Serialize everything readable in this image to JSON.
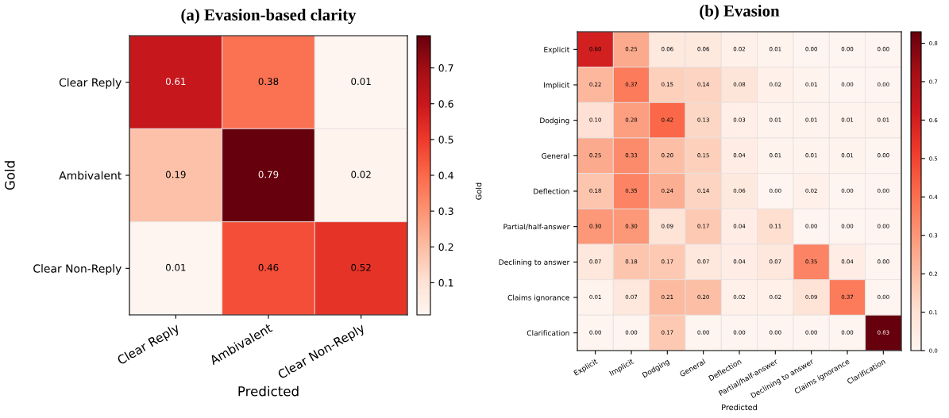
{
  "chart_data": [
    {
      "type": "heatmap",
      "title": "(a) Evasion-based clarity",
      "xlabel": "Predicted",
      "ylabel": "Gold",
      "categories": [
        "Clear Reply",
        "Ambivalent",
        "Clear Non-Reply"
      ],
      "y_categories": [
        "Clear Reply",
        "Ambivalent",
        "Clear Non-Reply"
      ],
      "cells": [
        [
          0.61,
          0.38,
          0.01
        ],
        [
          0.19,
          0.79,
          0.02
        ],
        [
          0.01,
          0.46,
          0.52
        ]
      ],
      "cell_labels": [
        [
          "0.61",
          "0.38",
          "0.01"
        ],
        [
          "0.19",
          "0.79",
          "0.02"
        ],
        [
          "0.01",
          "0.46",
          "0.52"
        ]
      ],
      "clim": [
        0.01,
        0.79
      ],
      "cticks": [
        0.1,
        0.2,
        0.3,
        0.4,
        0.5,
        0.6,
        0.7
      ]
    },
    {
      "type": "heatmap",
      "title": "(b) Evasion",
      "xlabel": "Predicted",
      "ylabel": "Gold",
      "categories": [
        "Explicit",
        "Implicit",
        "Dodging",
        "General",
        "Deflection",
        "Partial/half-answer",
        "Declining to answer",
        "Claims ignorance",
        "Clarification"
      ],
      "y_categories": [
        "Explicit",
        "Implicit",
        "Dodging",
        "General",
        "Deflection",
        "Partial/half-answer",
        "Declining to answer",
        "Claims ignorance",
        "Clarification"
      ],
      "cells": [
        [
          0.6,
          0.25,
          0.06,
          0.06,
          0.02,
          0.01,
          0.0,
          0.0,
          0.0
        ],
        [
          0.22,
          0.37,
          0.15,
          0.14,
          0.08,
          0.02,
          0.01,
          0.0,
          0.0
        ],
        [
          0.1,
          0.28,
          0.42,
          0.13,
          0.03,
          0.01,
          0.01,
          0.01,
          0.01
        ],
        [
          0.25,
          0.33,
          0.2,
          0.15,
          0.04,
          0.01,
          0.01,
          0.01,
          0.0
        ],
        [
          0.18,
          0.35,
          0.24,
          0.14,
          0.06,
          0.0,
          0.02,
          0.0,
          0.0
        ],
        [
          0.3,
          0.3,
          0.09,
          0.17,
          0.04,
          0.11,
          0.0,
          0.0,
          0.0
        ],
        [
          0.07,
          0.18,
          0.17,
          0.07,
          0.04,
          0.07,
          0.35,
          0.04,
          0.0
        ],
        [
          0.01,
          0.07,
          0.21,
          0.2,
          0.02,
          0.02,
          0.09,
          0.37,
          0.0
        ],
        [
          0.0,
          0.0,
          0.17,
          0.0,
          0.0,
          0.0,
          0.0,
          0.0,
          0.83
        ]
      ],
      "cell_labels": [
        [
          "0.60",
          "0.25",
          "0.06",
          "0.06",
          "0.02",
          "0.01",
          "0.00",
          "0.00",
          "0.00"
        ],
        [
          "0.22",
          "0.37",
          "0.15",
          "0.14",
          "0.08",
          "0.02",
          "0.01",
          "0.00",
          "0.00"
        ],
        [
          "0.10",
          "0.28",
          "0.42",
          "0.13",
          "0.03",
          "0.01",
          "0.01",
          "0.01",
          "0.01"
        ],
        [
          "0.25",
          "0.33",
          "0.20",
          "0.15",
          "0.04",
          "0.01",
          "0.01",
          "0.01",
          "0.00"
        ],
        [
          "0.18",
          "0.35",
          "0.24",
          "0.14",
          "0.06",
          "0.00",
          "0.02",
          "0.00",
          "0.00"
        ],
        [
          "0.30",
          "0.30",
          "0.09",
          "0.17",
          "0.04",
          "0.11",
          "0.00",
          "0.00",
          "0.00"
        ],
        [
          "0.07",
          "0.18",
          "0.17",
          "0.07",
          "0.04",
          "0.07",
          "0.35",
          "0.04",
          "0.00"
        ],
        [
          "0.01",
          "0.07",
          "0.21",
          "0.20",
          "0.02",
          "0.02",
          "0.09",
          "0.37",
          "0.00"
        ],
        [
          "0.00",
          "0.00",
          "0.17",
          "0.00",
          "0.00",
          "0.00",
          "0.00",
          "0.00",
          "0.83"
        ]
      ],
      "clim": [
        0.0,
        0.83
      ],
      "cticks": [
        {
          "value": 0.0,
          "label": "0.0"
        },
        0.1,
        0.2,
        0.3,
        0.4,
        0.5,
        0.6,
        0.7,
        0.8
      ]
    }
  ]
}
